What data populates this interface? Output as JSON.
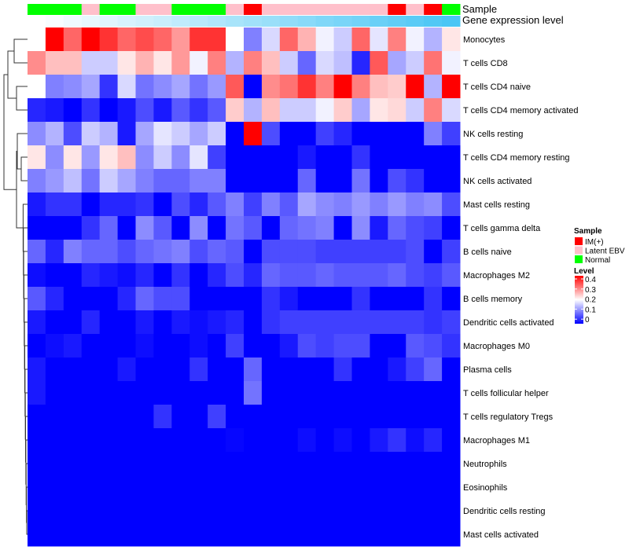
{
  "chart_data": {
    "type": "heatmap",
    "title": "",
    "annotation_labels": {
      "sample": "Sample",
      "gene_expression": "Gene expression level"
    },
    "sample_annotation": [
      "Normal",
      "Normal",
      "Normal",
      "Latent EBV",
      "Normal",
      "Normal",
      "Latent EBV",
      "Latent EBV",
      "Normal",
      "Normal",
      "Normal",
      "Latent EBV",
      "IM(+)",
      "Latent EBV",
      "Latent EBV",
      "Latent EBV",
      "Latent EBV",
      "Latent EBV",
      "Latent EBV",
      "Latent EBV",
      "IM(+)",
      "Latent EBV",
      "IM(+)",
      "Normal"
    ],
    "gene_expression_level": [
      0,
      0.04,
      0.09,
      0.13,
      0.17,
      0.22,
      0.26,
      0.3,
      0.35,
      0.39,
      0.43,
      0.48,
      0.52,
      0.56,
      0.61,
      0.65,
      0.7,
      0.74,
      0.78,
      0.83,
      0.87,
      0.91,
      0.96,
      1
    ],
    "rows": [
      "Monocytes",
      "T cells CD8",
      "T cells CD4 naive",
      "T cells CD4 memory activated",
      "NK cells resting",
      "T cells CD4 memory resting",
      "NK cells activated",
      "Mast cells resting",
      "T cells gamma delta",
      "B cells naive",
      "Macrophages M2",
      "B cells memory",
      "Dendritic cells activated",
      "Macrophages M0",
      "Plasma cells",
      "T cells follicular helper",
      "T cells regulatory  Tregs",
      "Macrophages M1",
      "Neutrophils",
      "Eosinophils",
      "Dendritic cells resting",
      "Mast cells activated"
    ],
    "values": [
      [
        0.2,
        0.4,
        0.32,
        0.4,
        0.36,
        0.32,
        0.34,
        0.32,
        0.28,
        0.36,
        0.36,
        0.2,
        0.1,
        0.17,
        0.32,
        0.26,
        0.19,
        0.16,
        0.32,
        0.18,
        0.3,
        0.19,
        0.14,
        0.22
      ],
      [
        0.29,
        0.25,
        0.25,
        0.16,
        0.16,
        0.22,
        0.26,
        0.22,
        0.28,
        0.19,
        0.3,
        0.14,
        0.3,
        0.25,
        0.16,
        0.08,
        0.17,
        0.15,
        0.03,
        0.33,
        0.13,
        0.16,
        0.31,
        0.19
      ],
      [
        0.2,
        0.1,
        0.11,
        0.13,
        0.04,
        0.17,
        0.09,
        0.11,
        0.13,
        0.09,
        0.12,
        0.33,
        0,
        0.29,
        0.31,
        0.36,
        0.3,
        0.4,
        0.3,
        0.25,
        0.24,
        0.4,
        0.14,
        0.4
      ],
      [
        0.03,
        0.02,
        0,
        0.04,
        0,
        0.02,
        0.06,
        0.02,
        0.07,
        0.04,
        0.07,
        0.24,
        0.14,
        0.25,
        0.16,
        0.16,
        0.19,
        0.24,
        0.13,
        0.22,
        0.23,
        0.16,
        0.3,
        0.17
      ],
      [
        0.11,
        0.14,
        0.06,
        0.16,
        0.14,
        0.02,
        0.13,
        0.18,
        0.16,
        0.13,
        0.16,
        0,
        0.4,
        0.06,
        0,
        0,
        0.05,
        0.03,
        0,
        0,
        0,
        0,
        0.1,
        0.05
      ],
      [
        0.22,
        0.11,
        0.22,
        0.12,
        0.22,
        0.25,
        0.11,
        0.16,
        0.11,
        0.18,
        0.05,
        0,
        0,
        0,
        0,
        0.02,
        0,
        0,
        0.04,
        0,
        0,
        0,
        0,
        0
      ],
      [
        0.1,
        0.12,
        0.15,
        0.09,
        0.16,
        0.13,
        0.1,
        0.08,
        0.08,
        0.1,
        0.1,
        0,
        0,
        0,
        0,
        0.08,
        0,
        0,
        0.09,
        0,
        0.06,
        0.04,
        0,
        0
      ],
      [
        0.02,
        0.04,
        0.04,
        0,
        0.03,
        0.03,
        0.04,
        0,
        0.06,
        0.03,
        0.07,
        0.1,
        0.05,
        0.1,
        0.07,
        0.13,
        0.11,
        0.1,
        0.12,
        0.1,
        0.12,
        0.1,
        0.11,
        0.06
      ],
      [
        0,
        0,
        0,
        0.04,
        0.08,
        0,
        0.11,
        0.07,
        0,
        0.11,
        0,
        0.09,
        0.07,
        0,
        0.08,
        0.09,
        0.1,
        0,
        0.11,
        0.02,
        0.08,
        0.06,
        0.05,
        0
      ],
      [
        0.08,
        0.03,
        0.1,
        0.08,
        0.08,
        0.06,
        0.08,
        0.09,
        0.1,
        0.06,
        0.08,
        0.07,
        0,
        0.06,
        0.06,
        0.06,
        0.05,
        0.05,
        0.05,
        0.05,
        0.05,
        0.06,
        0,
        0.05
      ],
      [
        0.01,
        0,
        0,
        0.03,
        0.02,
        0.01,
        0.03,
        0,
        0.04,
        0,
        0.03,
        0.06,
        0.03,
        0.08,
        0.07,
        0.07,
        0.08,
        0.07,
        0.07,
        0.07,
        0.08,
        0.06,
        0.05,
        0.07
      ],
      [
        0.07,
        0.03,
        0,
        0,
        0,
        0.03,
        0.08,
        0.06,
        0.06,
        0,
        0,
        0,
        0,
        0.04,
        0.02,
        0,
        0,
        0,
        0.04,
        0,
        0,
        0,
        0.04,
        0
      ],
      [
        0.02,
        0,
        0,
        0.03,
        0,
        0,
        0.02,
        0,
        0.02,
        0.01,
        0.02,
        0.03,
        0,
        0.04,
        0.05,
        0.05,
        0.05,
        0.05,
        0.05,
        0.05,
        0.05,
        0.05,
        0.04,
        0.05
      ],
      [
        0,
        0.01,
        0.02,
        0,
        0,
        0,
        0.01,
        0,
        0,
        0.01,
        0,
        0.05,
        0,
        0,
        0.02,
        0.06,
        0.05,
        0.06,
        0.06,
        0,
        0,
        0.07,
        0.06,
        0.04
      ],
      [
        0.02,
        0,
        0,
        0,
        0,
        0.02,
        0,
        0,
        0,
        0.04,
        0,
        0,
        0.08,
        0,
        0,
        0,
        0,
        0.04,
        0,
        0,
        0.02,
        0.05,
        0.08,
        0
      ],
      [
        0.02,
        0,
        0,
        0,
        0,
        0,
        0,
        0,
        0,
        0,
        0,
        0,
        0.09,
        0,
        0,
        0,
        0,
        0,
        0,
        0,
        0,
        0,
        0,
        0
      ],
      [
        0,
        0,
        0,
        0,
        0,
        0,
        0,
        0.04,
        0,
        0,
        0.05,
        0,
        0,
        0,
        0,
        0,
        0,
        0,
        0,
        0,
        0,
        0,
        0,
        0
      ],
      [
        0,
        0,
        0,
        0,
        0,
        0,
        0,
        0,
        0,
        0,
        0,
        0.005,
        0,
        0,
        0,
        0.01,
        0,
        0.01,
        0,
        0.02,
        0.04,
        0.01,
        0.03,
        0
      ],
      [
        0,
        0,
        0,
        0,
        0,
        0,
        0,
        0,
        0,
        0,
        0,
        0,
        0,
        0,
        0,
        0,
        0,
        0,
        0,
        0,
        0,
        0,
        0,
        0
      ],
      [
        0,
        0,
        0,
        0,
        0,
        0,
        0,
        0,
        0,
        0,
        0,
        0,
        0,
        0,
        0,
        0,
        0,
        0,
        0,
        0,
        0,
        0,
        0,
        0
      ],
      [
        0,
        0,
        0,
        0,
        0,
        0,
        0,
        0,
        0,
        0,
        0,
        0,
        0,
        0,
        0,
        0,
        0,
        0,
        0,
        0,
        0,
        0,
        0,
        0
      ],
      [
        0,
        0,
        0,
        0,
        0,
        0,
        0,
        0,
        0,
        0,
        0,
        0,
        0,
        0,
        0,
        0,
        0,
        0,
        0,
        0,
        0,
        0,
        0,
        0
      ]
    ],
    "value_range": [
      0,
      0.4
    ],
    "legend": {
      "placement": "right",
      "sample_title": "Sample",
      "sample_entries": [
        {
          "label": "IM(+)",
          "color": "#FF0000"
        },
        {
          "label": "Latent EBV",
          "color": "#FFC0CB"
        },
        {
          "label": "Normal",
          "color": "#00FF00"
        }
      ],
      "level_title": "Level",
      "level_ticks": [
        "0.4",
        "0.3",
        "0.2",
        "0.1",
        "0"
      ]
    },
    "colors": {
      "low": "#0000FF",
      "mid": "#FFFFFF",
      "high": "#FF0000",
      "gene_low": "#FFFFFF",
      "gene_high": "#4AC6F5"
    }
  }
}
